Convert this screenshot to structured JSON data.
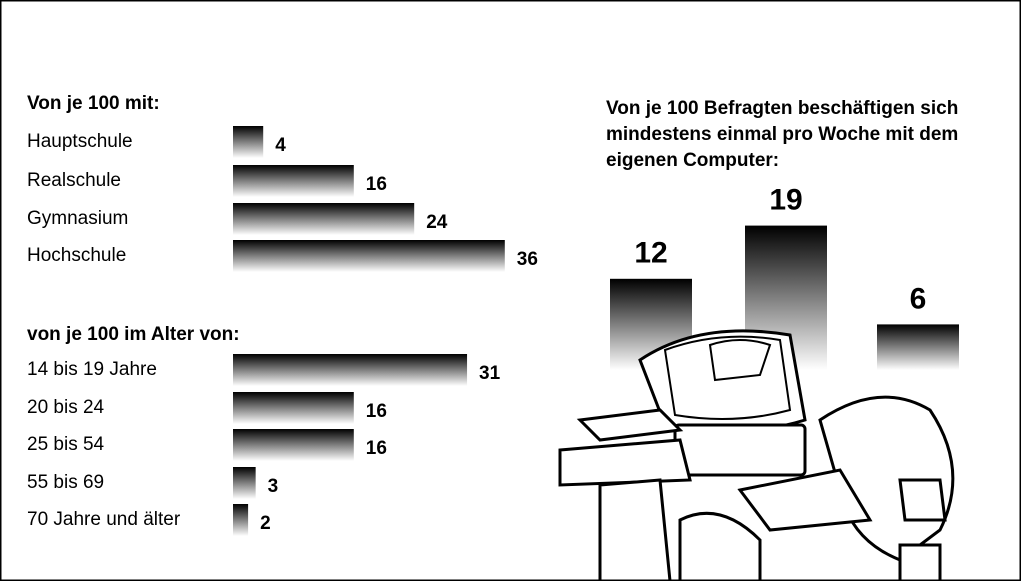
{
  "chart_data": [
    {
      "type": "hbar",
      "title": "Von je 100 mit:",
      "categories": [
        "Hauptschule",
        "Realschule",
        "Gymnasium",
        "Hochschule"
      ],
      "values": [
        4,
        16,
        24,
        36
      ],
      "color": "#000000"
    },
    {
      "type": "hbar",
      "title": "von je 100 im Alter von:",
      "categories": [
        "14 bis 19 Jahre",
        "20 bis 24",
        "25 bis 54",
        "55 bis 69",
        "70 Jahre und älter"
      ],
      "values": [
        31,
        16,
        16,
        3,
        2
      ],
      "color": "#000000"
    },
    {
      "type": "bar",
      "title": "Von je 100 Befragten beschäftigen sich mindestens einmal pro Woche mit dem eigenen Computer:",
      "categories": [
        null,
        null,
        null
      ],
      "values": [
        12,
        19,
        6
      ],
      "color": "#000000"
    }
  ]
}
